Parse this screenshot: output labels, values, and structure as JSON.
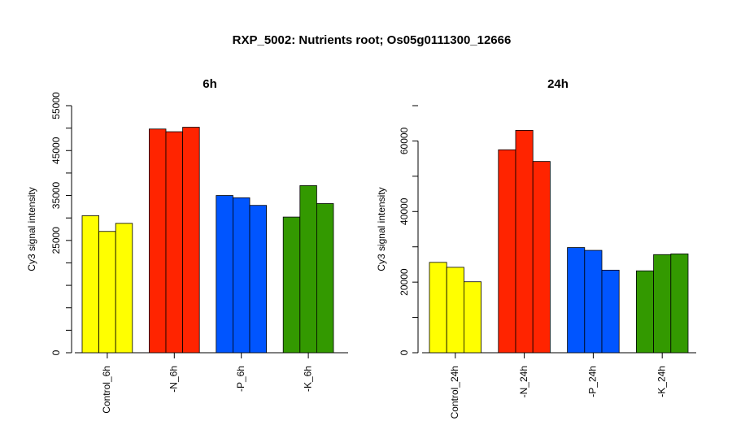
{
  "title": "RXP_5002: Nutrients root; Os05g0111300_12666",
  "chart_data": [
    {
      "type": "bar",
      "title": "6h",
      "ylabel": "Cy3 signal intensity",
      "ylim": [
        0,
        55000
      ],
      "yticks": [
        0,
        25000,
        35000,
        45000,
        55000
      ],
      "categories": [
        "Control_6h",
        "-N_6h",
        "-P_6h",
        "-K_6h"
      ],
      "colors": [
        "#ffff00",
        "#ff2400",
        "#0055ff",
        "#339900"
      ],
      "groups": [
        {
          "name": "Control_6h",
          "values": [
            30500,
            27000,
            28800
          ]
        },
        {
          "name": "-N_6h",
          "values": [
            49800,
            49200,
            50200
          ]
        },
        {
          "name": "-P_6h",
          "values": [
            35000,
            34500,
            32800
          ]
        },
        {
          "name": "-K_6h",
          "values": [
            30200,
            37200,
            33200
          ]
        }
      ]
    },
    {
      "type": "bar",
      "title": "24h",
      "ylabel": "Cy3 signal intensity",
      "ylim": [
        0,
        70000
      ],
      "yticks": [
        0,
        20000,
        40000,
        60000
      ],
      "categories": [
        "Control_24h",
        "-N_24h",
        "-P_24h",
        "-K_24h"
      ],
      "colors": [
        "#ffff00",
        "#ff2400",
        "#0055ff",
        "#339900"
      ],
      "groups": [
        {
          "name": "Control_24h",
          "values": [
            25600,
            24200,
            20100
          ]
        },
        {
          "name": "-N_24h",
          "values": [
            57500,
            63000,
            54200
          ]
        },
        {
          "name": "-P_24h",
          "values": [
            29800,
            29000,
            23400
          ]
        },
        {
          "name": "-K_24h",
          "values": [
            23200,
            27800,
            28000
          ]
        }
      ]
    }
  ]
}
